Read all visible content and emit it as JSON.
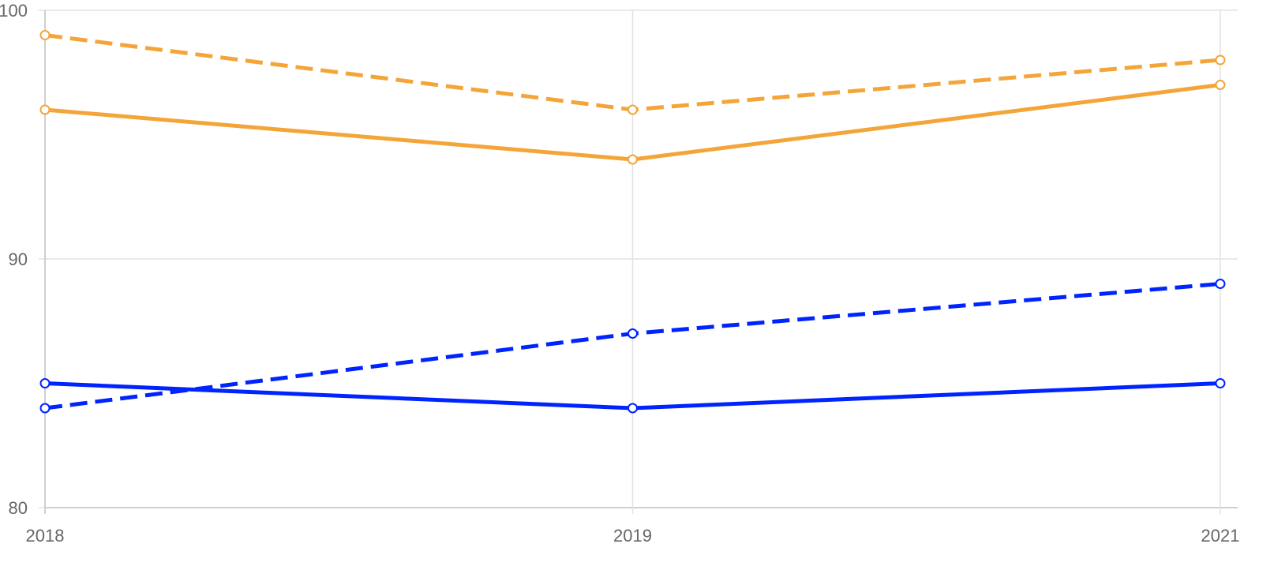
{
  "chart_data": {
    "type": "line",
    "title": "",
    "xlabel": "",
    "ylabel": "",
    "x": [
      "2018",
      "2019",
      "2021"
    ],
    "x_tick_labels": [
      "2018",
      "2019",
      "2021"
    ],
    "ylim": [
      80,
      100
    ],
    "y_ticks": [
      80,
      90,
      100
    ],
    "y_tick_labels": [
      "80",
      "90",
      "100"
    ],
    "grid": true,
    "legend": "none",
    "series": [
      {
        "color": "#F4A53A",
        "style": "dashed",
        "values": [
          99,
          96,
          98
        ]
      },
      {
        "color": "#F4A53A",
        "style": "solid",
        "values": [
          96,
          94,
          97
        ]
      },
      {
        "color": "#0024FF",
        "style": "dashed",
        "values": [
          84,
          87,
          89
        ]
      },
      {
        "color": "#0024FF",
        "style": "solid",
        "values": [
          85,
          84,
          85
        ]
      }
    ]
  }
}
